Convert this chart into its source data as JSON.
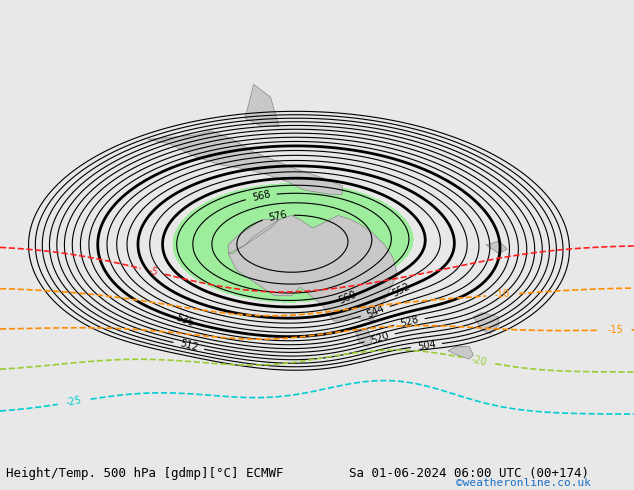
{
  "title_left": "Height/Temp. 500 hPa [gdmp][°C] ECMWF",
  "title_right": "Sa 01-06-2024 06:00 UTC (00+174)",
  "credit": "©weatheronline.co.uk",
  "credit_color": "#1a6fc4",
  "bg_color": "#d8d8d8",
  "land_color": "#c8c8c8",
  "green_fill_color": "#90ee90",
  "z500_contour_color": "#000000",
  "temp_colors": {
    "-5": "#ff2020",
    "-10": "#ff8c00",
    "-15": "#ff8c00",
    "-20": "#9acd32",
    "-25": "#00ced1",
    "-30": "#00ced1"
  },
  "font_size_labels": 9,
  "font_size_bottom": 10
}
